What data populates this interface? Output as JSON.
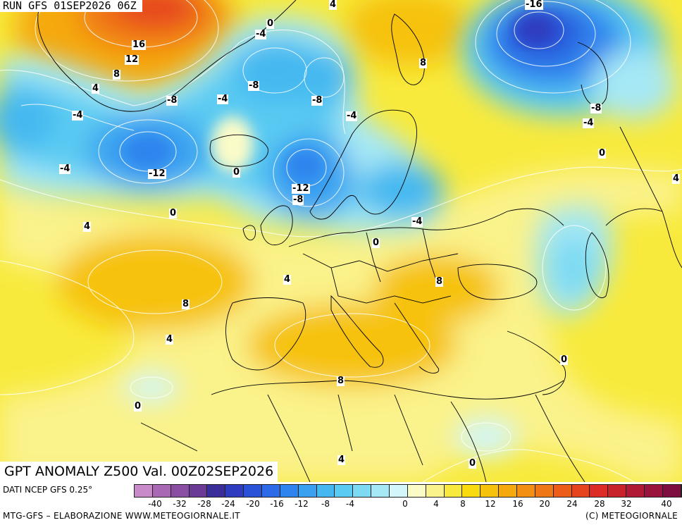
{
  "header": {
    "run_title": "RUN GFS 01SEP2026 06Z"
  },
  "map": {
    "field_title": "GPT ANOMALY Z500 Val. 00Z02SEP2026",
    "contour_labels": [
      "-16",
      "0",
      "-4",
      "-8",
      "-8",
      "-4",
      "-4",
      "-12",
      "-4",
      "0",
      "0",
      "16",
      "12",
      "8",
      "4",
      "-8",
      "-4",
      "-12",
      "-8",
      "-4",
      "-8",
      "-4",
      "0",
      "4",
      "8",
      "4",
      "8",
      "4",
      "0",
      "8",
      "0",
      "8",
      "4",
      "0",
      "0",
      "4",
      "8",
      "4"
    ]
  },
  "legend": {
    "data_source": "DATI NCEP GFS 0.25°",
    "colors": [
      "#c88ac8",
      "#a868b4",
      "#8a4ea2",
      "#6a3a96",
      "#3a2f9a",
      "#2e3cc0",
      "#2a52d8",
      "#2c6ae8",
      "#2f84ee",
      "#3aa0f0",
      "#45b8f0",
      "#5acbf2",
      "#7ddaf2",
      "#a6e8f5",
      "#d2f6f9",
      "#fbfbc8",
      "#faf28a",
      "#f8ea3c",
      "#f8dc10",
      "#f6c20c",
      "#f5a90f",
      "#f39013",
      "#f07716",
      "#ec5d1a",
      "#e6431f",
      "#dd2c25",
      "#c8222a",
      "#b01a34",
      "#98143c",
      "#7e0e40"
    ],
    "ticks": [
      "-40",
      "-32",
      "-28",
      "-24",
      "-20",
      "-16",
      "-12",
      "-8",
      "-4",
      "0",
      "4",
      "8",
      "12",
      "16",
      "20",
      "24",
      "28",
      "32",
      "40"
    ]
  },
  "footer": {
    "credit_left": "MTG-GFS – ELABORAZIONE WWW.METEOGIORNALE.IT",
    "credit_right": "(C) METEOGIORNALE"
  }
}
